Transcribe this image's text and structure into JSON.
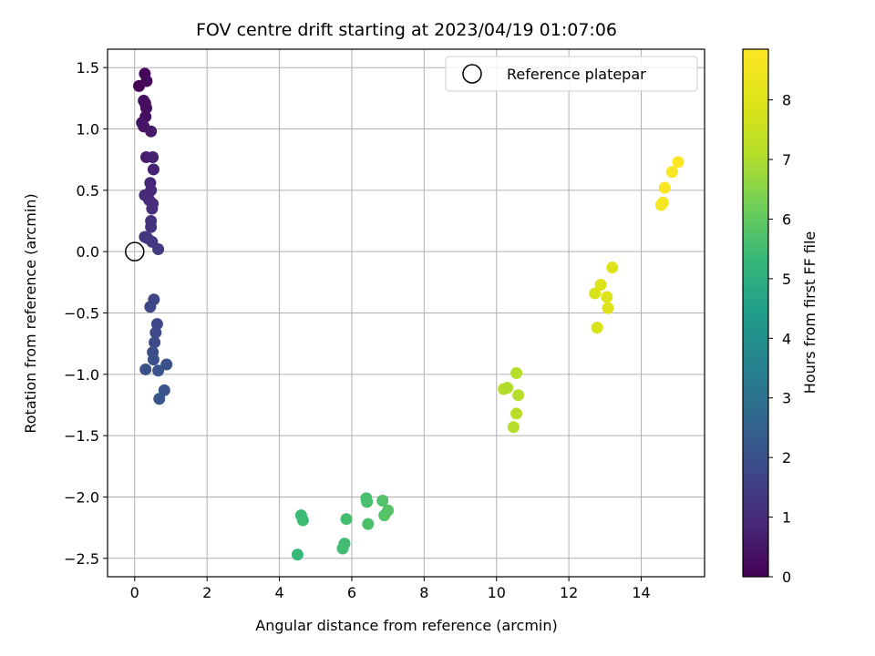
{
  "chart_data": {
    "type": "scatter",
    "title": "FOV centre drift starting at 2023/04/19 01:07:06",
    "xlabel": "Angular distance from reference (arcmin)",
    "ylabel": "Rotation from reference (arcmin)",
    "xlim": [
      -0.75,
      15.75
    ],
    "ylim": [
      -2.65,
      1.65
    ],
    "xticks": [
      0,
      2,
      4,
      6,
      8,
      10,
      12,
      14
    ],
    "xtick_labels": [
      "0",
      "2",
      "4",
      "6",
      "8",
      "10",
      "12",
      "14"
    ],
    "yticks": [
      -2.5,
      -2.0,
      -1.5,
      -1.0,
      -0.5,
      0.0,
      0.5,
      1.0,
      1.5
    ],
    "ytick_labels": [
      "−2.5",
      "−2.0",
      "−1.5",
      "−1.0",
      "−0.5",
      "0.0",
      "0.5",
      "1.0",
      "1.5"
    ],
    "grid": true,
    "legend": {
      "position": "top-right",
      "entries": [
        "Reference platepar"
      ]
    },
    "reference_point": {
      "x": 0.0,
      "y": 0.0
    },
    "colorbar": {
      "label": "Hours from first FF file",
      "colormap": "viridis",
      "range": [
        0,
        8.85
      ],
      "ticks": [
        0,
        1,
        2,
        3,
        4,
        5,
        6,
        7,
        8
      ],
      "tick_labels": [
        "0",
        "1",
        "2",
        "3",
        "4",
        "5",
        "6",
        "7",
        "8"
      ]
    },
    "points": [
      {
        "x": 0.12,
        "y": 1.35,
        "h": 0.05
      },
      {
        "x": 0.28,
        "y": 1.45,
        "h": 0.1
      },
      {
        "x": 0.33,
        "y": 1.39,
        "h": 0.15
      },
      {
        "x": 0.25,
        "y": 1.23,
        "h": 0.25
      },
      {
        "x": 0.32,
        "y": 1.17,
        "h": 0.3
      },
      {
        "x": 0.29,
        "y": 1.21,
        "h": 0.3
      },
      {
        "x": 0.3,
        "y": 1.1,
        "h": 0.35
      },
      {
        "x": 0.2,
        "y": 1.05,
        "h": 0.4
      },
      {
        "x": 0.25,
        "y": 1.02,
        "h": 0.45
      },
      {
        "x": 0.45,
        "y": 0.98,
        "h": 0.55
      },
      {
        "x": 0.32,
        "y": 0.77,
        "h": 0.65
      },
      {
        "x": 0.5,
        "y": 0.77,
        "h": 0.7
      },
      {
        "x": 0.52,
        "y": 0.67,
        "h": 0.75
      },
      {
        "x": 0.43,
        "y": 0.56,
        "h": 0.85
      },
      {
        "x": 0.45,
        "y": 0.5,
        "h": 0.9
      },
      {
        "x": 0.28,
        "y": 0.46,
        "h": 0.95
      },
      {
        "x": 0.4,
        "y": 0.42,
        "h": 1.0
      },
      {
        "x": 0.5,
        "y": 0.39,
        "h": 1.05
      },
      {
        "x": 0.48,
        "y": 0.35,
        "h": 1.1
      },
      {
        "x": 0.45,
        "y": 0.25,
        "h": 1.15
      },
      {
        "x": 0.45,
        "y": 0.2,
        "h": 1.2
      },
      {
        "x": 0.28,
        "y": 0.12,
        "h": 1.25
      },
      {
        "x": 0.35,
        "y": 0.11,
        "h": 1.3
      },
      {
        "x": 0.48,
        "y": 0.08,
        "h": 1.35
      },
      {
        "x": 0.65,
        "y": 0.02,
        "h": 1.4
      },
      {
        "x": 0.53,
        "y": -0.39,
        "h": 1.65
      },
      {
        "x": 0.43,
        "y": -0.45,
        "h": 1.7
      },
      {
        "x": 0.62,
        "y": -0.59,
        "h": 1.75
      },
      {
        "x": 0.58,
        "y": -0.66,
        "h": 1.8
      },
      {
        "x": 0.55,
        "y": -0.74,
        "h": 1.85
      },
      {
        "x": 0.5,
        "y": -0.82,
        "h": 1.9
      },
      {
        "x": 0.52,
        "y": -0.88,
        "h": 1.95
      },
      {
        "x": 0.88,
        "y": -0.92,
        "h": 2.0
      },
      {
        "x": 0.3,
        "y": -0.96,
        "h": 2.0
      },
      {
        "x": 0.65,
        "y": -0.97,
        "h": 2.05
      },
      {
        "x": 0.82,
        "y": -1.13,
        "h": 2.1
      },
      {
        "x": 0.68,
        "y": -1.2,
        "h": 2.15
      },
      {
        "x": 4.6,
        "y": -2.15,
        "h": 5.4
      },
      {
        "x": 4.65,
        "y": -2.19,
        "h": 5.45
      },
      {
        "x": 4.5,
        "y": -2.47,
        "h": 5.35
      },
      {
        "x": 5.8,
        "y": -2.38,
        "h": 5.5
      },
      {
        "x": 5.75,
        "y": -2.42,
        "h": 5.5
      },
      {
        "x": 5.85,
        "y": -2.18,
        "h": 5.55
      },
      {
        "x": 6.4,
        "y": -2.01,
        "h": 5.6
      },
      {
        "x": 6.42,
        "y": -2.04,
        "h": 5.6
      },
      {
        "x": 6.45,
        "y": -2.22,
        "h": 5.65
      },
      {
        "x": 6.85,
        "y": -2.03,
        "h": 5.75
      },
      {
        "x": 6.9,
        "y": -2.15,
        "h": 5.8
      },
      {
        "x": 7.0,
        "y": -2.11,
        "h": 5.8
      },
      {
        "x": 10.2,
        "y": -1.12,
        "h": 7.05
      },
      {
        "x": 10.3,
        "y": -1.11,
        "h": 7.05
      },
      {
        "x": 10.55,
        "y": -0.99,
        "h": 7.1
      },
      {
        "x": 10.6,
        "y": -1.17,
        "h": 7.1
      },
      {
        "x": 10.55,
        "y": -1.32,
        "h": 7.15
      },
      {
        "x": 10.47,
        "y": -1.43,
        "h": 7.15
      },
      {
        "x": 12.72,
        "y": -0.34,
        "h": 7.9
      },
      {
        "x": 12.88,
        "y": -0.27,
        "h": 7.95
      },
      {
        "x": 13.05,
        "y": -0.37,
        "h": 7.95
      },
      {
        "x": 13.08,
        "y": -0.46,
        "h": 8.0
      },
      {
        "x": 13.2,
        "y": -0.13,
        "h": 8.05
      },
      {
        "x": 12.78,
        "y": -0.62,
        "h": 7.9
      },
      {
        "x": 14.55,
        "y": 0.38,
        "h": 8.6
      },
      {
        "x": 14.6,
        "y": 0.4,
        "h": 8.65
      },
      {
        "x": 14.65,
        "y": 0.52,
        "h": 8.7
      },
      {
        "x": 14.85,
        "y": 0.65,
        "h": 8.75
      },
      {
        "x": 15.02,
        "y": 0.73,
        "h": 8.85
      }
    ]
  }
}
